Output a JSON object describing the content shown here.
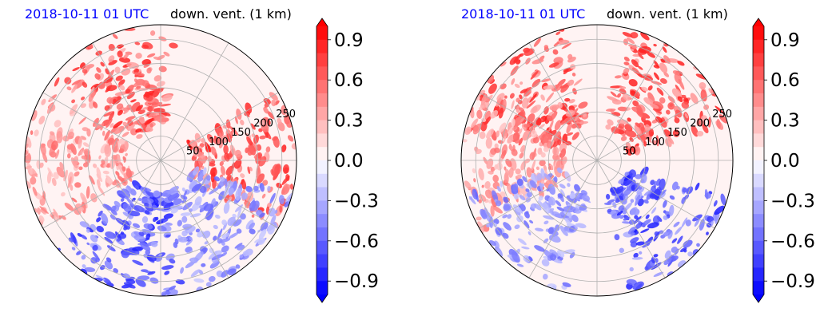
{
  "colors": {
    "positive": "#ff0000",
    "negative": "#0000ff",
    "neutral": "#ffffff",
    "grid": "#b0b0b0",
    "timestamp_text": "#0000ff"
  },
  "colorbar": {
    "tick_labels": [
      "0.9",
      "0.6",
      "0.3",
      "0.0",
      "−0.3",
      "−0.6",
      "−0.9"
    ],
    "min": -1.0,
    "max": 1.0,
    "extend": "both"
  },
  "chart_data": [
    {
      "type": "heatmap",
      "projection": "polar",
      "timestamp": "2018-10-11 01 UTC",
      "variable": "down. vent. (1 km)",
      "radial_ticks": [
        "50",
        "100",
        "150",
        "200",
        "250"
      ],
      "radial_values": [
        50,
        100,
        150,
        200,
        250
      ],
      "rmax": 280,
      "vlim": [
        -1.0,
        1.0
      ],
      "grid": true,
      "dominant_regions": [
        {
          "sector": "north / north-west",
          "sign": "positive",
          "value": 0.9
        },
        {
          "sector": "east",
          "sign": "positive",
          "value": 0.9
        },
        {
          "sector": "west edge",
          "sign": "positive",
          "value": 0.6
        },
        {
          "sector": "south / south-west",
          "sign": "negative",
          "value": -0.9
        },
        {
          "sector": "south-east",
          "sign": "negative",
          "value": -0.6
        }
      ]
    },
    {
      "type": "heatmap",
      "projection": "polar",
      "timestamp": "2018-10-11 01 UTC",
      "variable": "down. vent. (1 km)",
      "radial_ticks": [
        "50",
        "100",
        "150",
        "200",
        "250"
      ],
      "radial_values": [
        50,
        100,
        150,
        200,
        250
      ],
      "rmax": 280,
      "vlim": [
        -1.0,
        1.0
      ],
      "grid": true,
      "dominant_regions": [
        {
          "sector": "north-west",
          "sign": "positive",
          "value": 0.9
        },
        {
          "sector": "north-east",
          "sign": "positive",
          "value": 0.9
        },
        {
          "sector": "west",
          "sign": "positive",
          "value": 0.6
        },
        {
          "sector": "south-west",
          "sign": "negative",
          "value": -0.6
        },
        {
          "sector": "south-east",
          "sign": "negative",
          "value": -0.9
        }
      ]
    }
  ]
}
